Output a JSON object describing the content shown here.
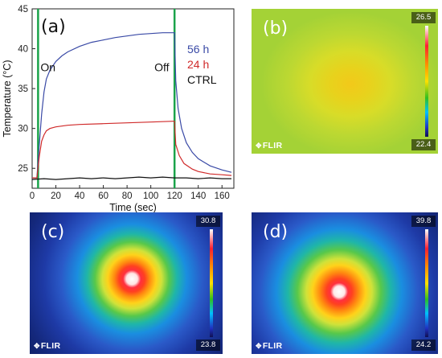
{
  "chart_data": {
    "type": "line",
    "panel_label": "(a)",
    "xlabel": "Time (sec)",
    "ylabel": "Temperature (°C)",
    "xlim": [
      0,
      170
    ],
    "ylim": [
      22.5,
      45
    ],
    "xticks": [
      0,
      20,
      40,
      60,
      80,
      100,
      120,
      140,
      160
    ],
    "yticks": [
      25,
      30,
      35,
      40,
      45
    ],
    "annotations": [
      {
        "text": "On",
        "x": 7,
        "y": 37.2
      },
      {
        "text": "Off",
        "x": 103,
        "y": 37.2
      }
    ],
    "markers": [
      {
        "x": 5,
        "color": "#1aa34a"
      },
      {
        "x": 120,
        "color": "#1aa34a"
      }
    ],
    "series": [
      {
        "name": "56 h",
        "color": "#3a4aa6",
        "points": [
          [
            0,
            23.8
          ],
          [
            4,
            23.8
          ],
          [
            6,
            28.0
          ],
          [
            8,
            31.8
          ],
          [
            10,
            34.6
          ],
          [
            12,
            36.2
          ],
          [
            15,
            37.3
          ],
          [
            20,
            38.4
          ],
          [
            25,
            39.1
          ],
          [
            30,
            39.6
          ],
          [
            40,
            40.3
          ],
          [
            50,
            40.8
          ],
          [
            60,
            41.1
          ],
          [
            70,
            41.4
          ],
          [
            80,
            41.6
          ],
          [
            90,
            41.8
          ],
          [
            100,
            41.9
          ],
          [
            110,
            42.0
          ],
          [
            119,
            42.0
          ],
          [
            120,
            42.0
          ],
          [
            121,
            36.0
          ],
          [
            123,
            32.5
          ],
          [
            126,
            30.0
          ],
          [
            130,
            28.2
          ],
          [
            135,
            27.0
          ],
          [
            140,
            26.2
          ],
          [
            150,
            25.3
          ],
          [
            160,
            24.8
          ],
          [
            168,
            24.5
          ]
        ]
      },
      {
        "name": "24 h",
        "color": "#d02a2a",
        "points": [
          [
            0,
            23.8
          ],
          [
            4,
            23.8
          ],
          [
            6,
            26.5
          ],
          [
            8,
            28.4
          ],
          [
            10,
            29.2
          ],
          [
            12,
            29.7
          ],
          [
            15,
            30.0
          ],
          [
            20,
            30.2
          ],
          [
            30,
            30.4
          ],
          [
            40,
            30.5
          ],
          [
            60,
            30.6
          ],
          [
            80,
            30.7
          ],
          [
            100,
            30.8
          ],
          [
            119,
            30.9
          ],
          [
            120,
            30.9
          ],
          [
            121,
            28.0
          ],
          [
            124,
            26.6
          ],
          [
            128,
            25.6
          ],
          [
            135,
            24.9
          ],
          [
            140,
            24.6
          ],
          [
            150,
            24.3
          ],
          [
            160,
            24.2
          ],
          [
            168,
            24.1
          ]
        ]
      },
      {
        "name": "CTRL",
        "color": "#111111",
        "points": [
          [
            0,
            23.6
          ],
          [
            10,
            23.7
          ],
          [
            20,
            23.6
          ],
          [
            30,
            23.7
          ],
          [
            40,
            23.8
          ],
          [
            50,
            23.7
          ],
          [
            60,
            23.8
          ],
          [
            70,
            23.7
          ],
          [
            80,
            23.8
          ],
          [
            90,
            23.9
          ],
          [
            100,
            23.8
          ],
          [
            110,
            23.9
          ],
          [
            120,
            23.8
          ],
          [
            130,
            23.8
          ],
          [
            140,
            23.7
          ],
          [
            150,
            23.8
          ],
          [
            160,
            23.7
          ],
          [
            168,
            23.7
          ]
        ]
      }
    ]
  },
  "thermal_images": [
    {
      "label": "(b)",
      "max": "26.5",
      "min": "22.4",
      "brand": "FLIR"
    },
    {
      "label": "(c)",
      "max": "30.8",
      "min": "23.8",
      "brand": "FLIR"
    },
    {
      "label": "(d)",
      "max": "39.8",
      "min": "24.2",
      "brand": "FLIR"
    }
  ],
  "icons": {
    "brand_icon": "flir-logo-icon"
  }
}
